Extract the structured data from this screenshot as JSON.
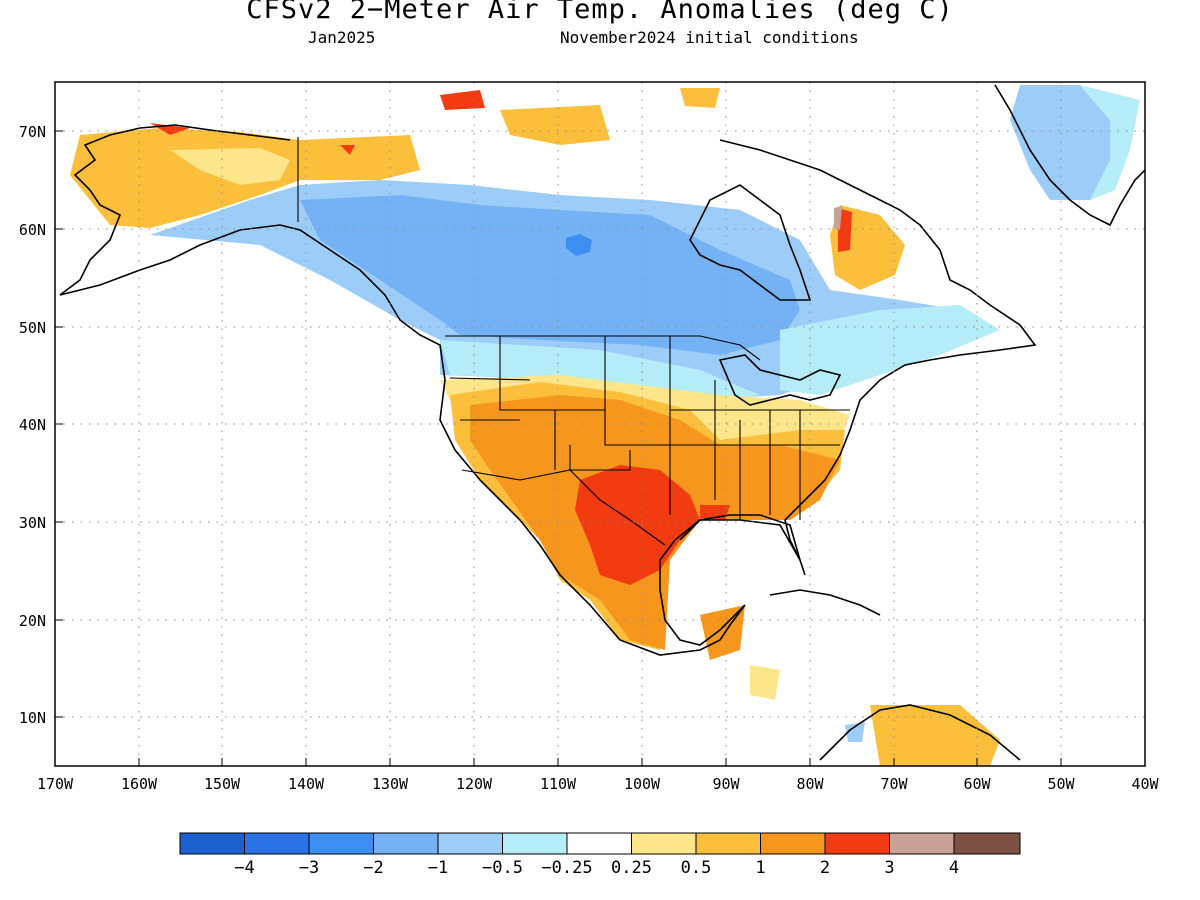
{
  "title": "CFSv2 2−Meter Air Temp. Anomalies (deg C)",
  "valid_month": "Jan2025",
  "initial_conditions": "November2024 initial conditions",
  "axes": {
    "lat_labels": [
      "70N",
      "60N",
      "50N",
      "40N",
      "30N",
      "20N",
      "10N"
    ],
    "lat_values": [
      70,
      60,
      50,
      40,
      30,
      20,
      10
    ],
    "lon_labels": [
      "170W",
      "160W",
      "150W",
      "140W",
      "130W",
      "120W",
      "110W",
      "100W",
      "90W",
      "80W",
      "70W",
      "60W",
      "50W",
      "40W"
    ],
    "lon_values": [
      -170,
      -160,
      -150,
      -140,
      -130,
      -120,
      -110,
      -100,
      -90,
      -80,
      -70,
      -60,
      -50,
      -40
    ],
    "lon_range": [
      -170,
      -40
    ],
    "lat_range": [
      5,
      75
    ],
    "grid": "dotted"
  },
  "colorbar": {
    "colors": [
      "#1c5fcf",
      "#2a72e6",
      "#3c8ef0",
      "#74b2f5",
      "#9ccdf8",
      "#b4ecf8",
      "#ffffff",
      "#fde68a",
      "#fbbf3c",
      "#f7961c",
      "#f33b12",
      "#c9a297",
      "#7d5144"
    ],
    "labels": [
      "−4",
      "−3",
      "−2",
      "−1",
      "−0.5",
      "−0.25",
      "0.25",
      "0.5",
      "1",
      "2",
      "3",
      "4"
    ]
  }
}
